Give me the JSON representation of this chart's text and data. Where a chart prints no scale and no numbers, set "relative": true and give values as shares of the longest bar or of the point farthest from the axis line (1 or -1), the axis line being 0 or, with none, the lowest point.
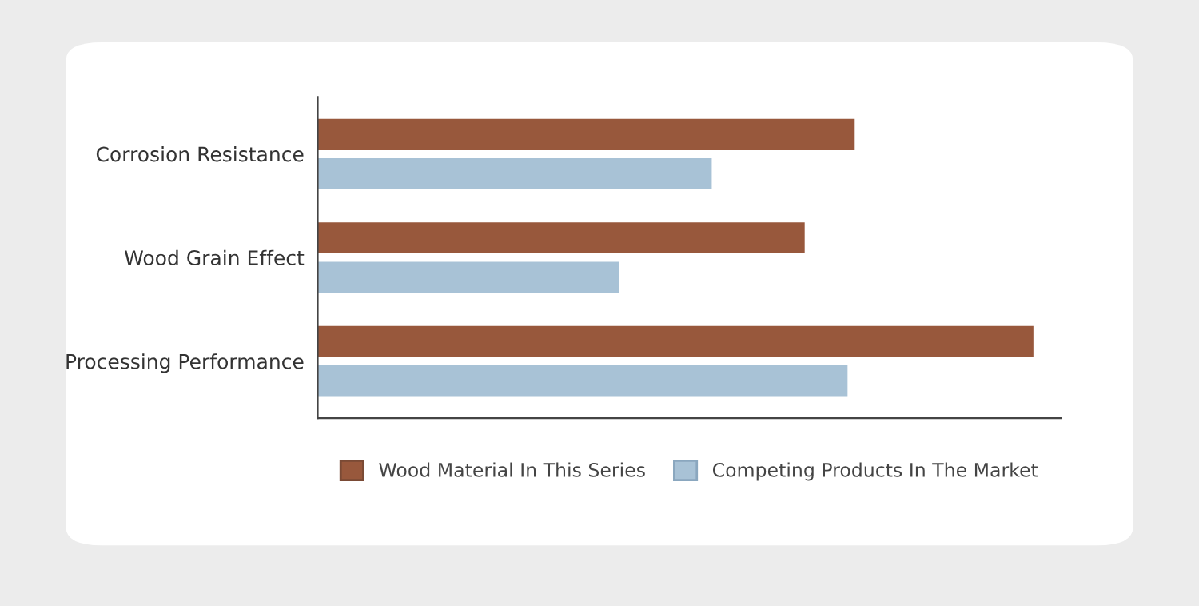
{
  "chart_data": {
    "type": "bar",
    "orientation": "horizontal",
    "relative": true,
    "categories": [
      "Corrosion Resistance",
      "Wood Grain Effect",
      "Processing Performance"
    ],
    "series": [
      {
        "name": "Wood Material In This Series",
        "color": "#98583c",
        "values": [
          0.75,
          0.68,
          1
        ]
      },
      {
        "name": "Competing Products In The Market",
        "color": "#a8c2d6",
        "values": [
          0.55,
          0.42,
          0.74
        ]
      }
    ],
    "legend": "bottom",
    "grid": false
  }
}
